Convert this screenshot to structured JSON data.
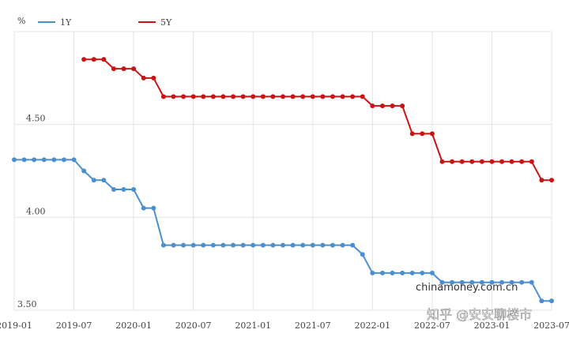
{
  "chart_data": {
    "type": "line",
    "y_label": "%",
    "categories": [
      "2019-01",
      null,
      null,
      null,
      null,
      null,
      "2019-07",
      null,
      null,
      null,
      null,
      null,
      "2020-01",
      null,
      null,
      null,
      null,
      null,
      "2020-07",
      null,
      null,
      null,
      null,
      null,
      "2021-01",
      null,
      null,
      null,
      null,
      null,
      "2021-07",
      null,
      null,
      null,
      null,
      null,
      "2022-01",
      null,
      null,
      null,
      null,
      null,
      "2022-07",
      null,
      null,
      null,
      null,
      null,
      "2023-01",
      null,
      null,
      null,
      null,
      null,
      "2023-07"
    ],
    "series": [
      {
        "name": "1Y",
        "color": "#4a8fd0",
        "values": [
          4.31,
          4.31,
          4.31,
          4.31,
          4.31,
          4.31,
          4.31,
          4.25,
          4.2,
          4.2,
          4.15,
          4.15,
          4.15,
          4.05,
          4.05,
          3.85,
          3.85,
          3.85,
          3.85,
          3.85,
          3.85,
          3.85,
          3.85,
          3.85,
          3.85,
          3.85,
          3.85,
          3.85,
          3.85,
          3.85,
          3.85,
          3.85,
          3.85,
          3.85,
          3.85,
          3.8,
          3.7,
          3.7,
          3.7,
          3.7,
          3.7,
          3.7,
          3.7,
          3.65,
          3.65,
          3.65,
          3.65,
          3.65,
          3.65,
          3.65,
          3.65,
          3.65,
          3.65,
          3.55,
          3.55
        ]
      },
      {
        "name": "5Y",
        "color": "#c81414",
        "values": [
          null,
          null,
          null,
          null,
          null,
          null,
          null,
          4.85,
          4.85,
          4.85,
          4.8,
          4.8,
          4.8,
          4.75,
          4.75,
          4.65,
          4.65,
          4.65,
          4.65,
          4.65,
          4.65,
          4.65,
          4.65,
          4.65,
          4.65,
          4.65,
          4.65,
          4.65,
          4.65,
          4.65,
          4.65,
          4.65,
          4.65,
          4.65,
          4.65,
          4.65,
          4.6,
          4.6,
          4.6,
          4.6,
          4.45,
          4.45,
          4.45,
          4.3,
          4.3,
          4.3,
          4.3,
          4.3,
          4.3,
          4.3,
          4.3,
          4.3,
          4.3,
          4.2,
          4.2
        ]
      }
    ],
    "ylim": [
      3.5,
      5.0
    ],
    "yticks": [
      {
        "value": 3.5,
        "label": "3.50"
      },
      {
        "value": 4.0,
        "label": "4.00"
      },
      {
        "value": 4.5,
        "label": "4.50"
      }
    ],
    "grid": true,
    "legend": "top-left",
    "annotations": [
      "chinamoney.com.cn",
      "知乎 @安安聊楼市"
    ]
  }
}
